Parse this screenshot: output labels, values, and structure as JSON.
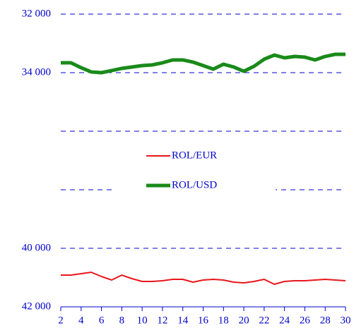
{
  "chart_data": {
    "type": "line",
    "x": [
      2,
      3,
      4,
      5,
      6,
      7,
      8,
      9,
      10,
      11,
      12,
      13,
      14,
      15,
      16,
      17,
      18,
      19,
      20,
      21,
      22,
      23,
      24,
      25,
      26,
      27,
      28,
      29,
      30
    ],
    "xlim": [
      2,
      30
    ],
    "xticks": [
      2,
      4,
      6,
      8,
      10,
      12,
      14,
      16,
      18,
      20,
      22,
      24,
      26,
      28,
      30
    ],
    "ylim": [
      32000,
      42000
    ],
    "inverted": true,
    "yticks": [
      {
        "value": 32000,
        "label": "32 000"
      },
      {
        "value": 34000,
        "label": "34 000"
      },
      {
        "value": 36000,
        "label": null
      },
      {
        "value": 38000,
        "label": null
      },
      {
        "value": 40000,
        "label": "40 000"
      },
      {
        "value": 42000,
        "label": "42 000"
      }
    ],
    "grid": true,
    "legend": "center",
    "series": [
      {
        "name": "ROL/EUR",
        "color": "#e8161c",
        "width": 2,
        "values": [
          40916,
          40916,
          40867,
          40819,
          40964,
          41084,
          40916,
          41036,
          41133,
          41133,
          41108,
          41060,
          41060,
          41157,
          41084,
          41060,
          41084,
          41157,
          41181,
          41133,
          41060,
          41229,
          41133,
          41108,
          41108,
          41084,
          41060,
          41084,
          41108
        ]
      },
      {
        "name": "ROL/USD",
        "color": "#1a8a1a",
        "width": 5,
        "values": [
          33663,
          33663,
          33831,
          33976,
          34000,
          33928,
          33855,
          33807,
          33759,
          33735,
          33663,
          33566,
          33566,
          33639,
          33759,
          33880,
          33711,
          33807,
          33952,
          33783,
          33542,
          33398,
          33494,
          33446,
          33470,
          33566,
          33446,
          33373,
          33373
        ]
      }
    ]
  }
}
